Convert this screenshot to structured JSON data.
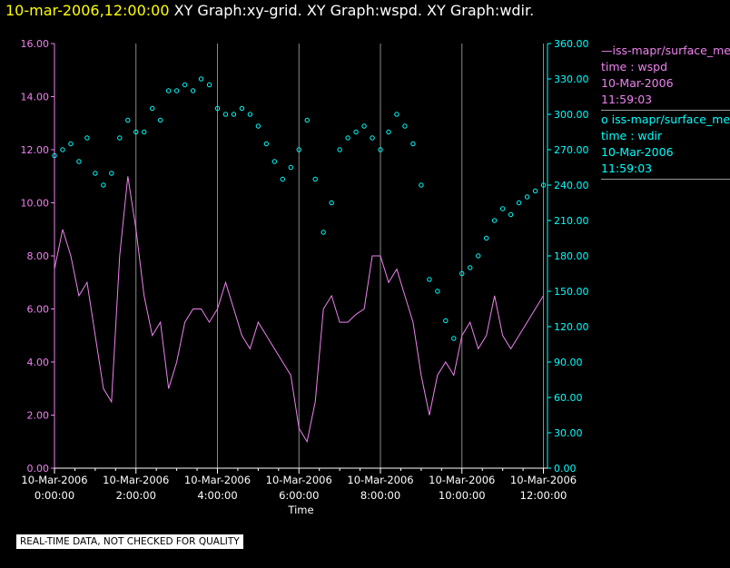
{
  "header": {
    "timestamp": "10-mar-2006,12:00:00",
    "title_rest": "  XY Graph:xy-grid.  XY Graph:wspd.  XY Graph:wdir."
  },
  "legend": [
    {
      "symbol": "—",
      "name": "iss-mapr/surface_met",
      "var": "time : wspd",
      "date": "10-Mar-2006",
      "time": "11:59:03",
      "color": "#ee82ee"
    },
    {
      "symbol": "o",
      "name": "iss-mapr/surface_met",
      "var": "time : wdir",
      "date": "10-Mar-2006",
      "time": "11:59:03",
      "color": "#00ffff"
    }
  ],
  "footer": "REAL-TIME DATA, NOT CHECKED FOR QUALITY",
  "chart_data": {
    "type": "line",
    "xlabel": "Time",
    "x_unit": "hours after 10-Mar-2006 0:00:00",
    "xlim": [
      0,
      12.1
    ],
    "x_ticks": [
      {
        "date": "10-Mar-2006",
        "time": "0:00:00",
        "hour": 0
      },
      {
        "date": "10-Mar-2006",
        "time": "2:00:00",
        "hour": 2
      },
      {
        "date": "10-Mar-2006",
        "time": "4:00:00",
        "hour": 4
      },
      {
        "date": "10-Mar-2006",
        "time": "6:00:00",
        "hour": 6
      },
      {
        "date": "10-Mar-2006",
        "time": "8:00:00",
        "hour": 8
      },
      {
        "date": "10-Mar-2006",
        "time": "10:00:00",
        "hour": 10
      },
      {
        "date": "10-Mar-2006",
        "time": "12:00:00",
        "hour": 12
      }
    ],
    "y_left": {
      "ylim": [
        0,
        16
      ],
      "ticks": [
        "0.00",
        "2.00",
        "4.00",
        "6.00",
        "8.00",
        "10.00",
        "12.00",
        "14.00",
        "16.00"
      ],
      "color": "#ee82ee"
    },
    "y_right": {
      "ylim": [
        0,
        360
      ],
      "ticks": [
        "0.00",
        "30.00",
        "60.00",
        "90.00",
        "120.00",
        "150.00",
        "180.00",
        "210.00",
        "240.00",
        "270.00",
        "300.00",
        "330.00",
        "360.00"
      ],
      "color": "#00ffff"
    },
    "grid": "vertical",
    "series": [
      {
        "name": "wspd",
        "axis": "left",
        "style": "line",
        "color": "#ee82ee",
        "x": [
          0,
          0.2,
          0.4,
          0.6,
          0.8,
          1.0,
          1.2,
          1.4,
          1.6,
          1.8,
          2.0,
          2.2,
          2.4,
          2.6,
          2.8,
          3.0,
          3.2,
          3.4,
          3.6,
          3.8,
          4.0,
          4.2,
          4.4,
          4.6,
          4.8,
          5.0,
          5.2,
          5.4,
          5.6,
          5.8,
          6.0,
          6.2,
          6.4,
          6.6,
          6.8,
          7.0,
          7.2,
          7.4,
          7.6,
          7.8,
          8.0,
          8.2,
          8.4,
          8.6,
          8.8,
          9.0,
          9.2,
          9.4,
          9.6,
          9.8,
          10.0,
          10.2,
          10.4,
          10.6,
          10.8,
          11.0,
          11.2,
          11.4,
          11.6,
          11.8,
          12.0
        ],
        "values": [
          7.5,
          9.0,
          8.0,
          6.5,
          7.0,
          5.0,
          3.0,
          2.5,
          8.0,
          11.0,
          9.0,
          6.5,
          5.0,
          5.5,
          3.0,
          4.0,
          5.5,
          6.0,
          6.0,
          5.5,
          6.0,
          7.0,
          6.0,
          5.0,
          4.5,
          5.5,
          5.0,
          4.5,
          4.0,
          3.5,
          1.5,
          1.0,
          2.5,
          6.0,
          6.5,
          5.5,
          5.5,
          5.8,
          6.0,
          8.0,
          8.0,
          7.0,
          7.5,
          6.5,
          5.5,
          3.5,
          2.0,
          3.5,
          4.0,
          3.5,
          5.0,
          5.5,
          4.5,
          5.0,
          6.5,
          5.0,
          4.5,
          5.0,
          5.5,
          6.0,
          6.5
        ]
      },
      {
        "name": "wdir",
        "axis": "right",
        "style": "scatter",
        "color": "#00ffff",
        "x": [
          0,
          0.2,
          0.4,
          0.6,
          0.8,
          1.0,
          1.2,
          1.4,
          1.6,
          1.8,
          2.0,
          2.2,
          2.4,
          2.6,
          2.8,
          3.0,
          3.2,
          3.4,
          3.6,
          3.8,
          4.0,
          4.2,
          4.4,
          4.6,
          4.8,
          5.0,
          5.2,
          5.4,
          5.6,
          5.8,
          6.0,
          6.2,
          6.4,
          6.6,
          6.8,
          7.0,
          7.2,
          7.4,
          7.6,
          7.8,
          8.0,
          8.2,
          8.4,
          8.6,
          8.8,
          9.0,
          9.2,
          9.4,
          9.6,
          9.8,
          10.0,
          10.2,
          10.4,
          10.6,
          10.8,
          11.0,
          11.2,
          11.4,
          11.6,
          11.8,
          12.0
        ],
        "values": [
          265,
          270,
          275,
          260,
          280,
          250,
          240,
          250,
          280,
          295,
          285,
          285,
          305,
          295,
          320,
          320,
          325,
          320,
          330,
          325,
          305,
          300,
          300,
          305,
          300,
          290,
          275,
          260,
          245,
          255,
          270,
          295,
          245,
          200,
          225,
          270,
          280,
          285,
          290,
          280,
          270,
          285,
          300,
          290,
          275,
          240,
          160,
          150,
          125,
          110,
          165,
          170,
          180,
          195,
          210,
          220,
          215,
          225,
          230,
          235,
          240
        ]
      }
    ]
  }
}
